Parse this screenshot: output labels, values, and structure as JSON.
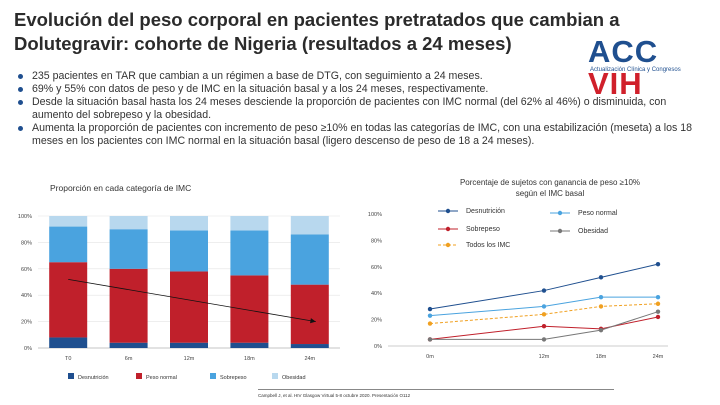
{
  "title": "Evolución del peso corporal en pacientes pretratados que cambian a Dolutegravir: cohorte de Nigeria (resultados a 24 meses)",
  "logo": {
    "part1": "ACC",
    "part2": "VIH",
    "tagline": "Actualización Clínica y Congresos",
    "colors": {
      "blue": "#1f4f8f",
      "red": "#d0202b"
    }
  },
  "bullets": [
    "235 pacientes en TAR que cambian a un régimen a base de DTG, con seguimiento a 24 meses.",
    "69% y 55% con datos de peso y de IMC en la situación basal y a los 24 meses, respectivamente.",
    "Desde la situación basal hasta los 24 meses desciende la proporción de pacientes con IMC normal (del 62% al 46%) o disminuida, con aumento del sobrepeso y la obesidad.",
    "Aumenta la proporción de pacientes con incremento de peso ≥10% en todas las categorías de IMC, con una estabilización (meseta) a los 18 meses en los pacientes con IMC normal en la situación basal (ligero descenso de peso de 18 a 24 meses)."
  ],
  "chart_data": [
    {
      "type": "bar",
      "stacked": true,
      "title": "Proporción en cada categoría de IMC",
      "categories": [
        "T0",
        "6m",
        "12m",
        "18m",
        "24m"
      ],
      "ylim": [
        0,
        100
      ],
      "yticks": [
        "0%",
        "20%",
        "40%",
        "60%",
        "80%",
        "100%"
      ],
      "ytick_values": [
        0,
        20,
        40,
        60,
        80,
        100
      ],
      "series": [
        {
          "name": "Desnutrición",
          "color": "#1f4f8f",
          "values": [
            8,
            4,
            4,
            4,
            3
          ]
        },
        {
          "name": "Peso normal",
          "color": "#c0202b",
          "values": [
            57,
            56,
            54,
            51,
            45
          ]
        },
        {
          "name": "Sobrepeso",
          "color": "#4aa3df",
          "values": [
            27,
            30,
            31,
            34,
            38
          ]
        },
        {
          "name": "Obesidad",
          "color": "#b8d8ee",
          "values": [
            8,
            10,
            11,
            11,
            14
          ]
        }
      ],
      "trend_arrow": {
        "from": {
          "x": "T0",
          "y": 52
        },
        "to": {
          "x": "24m",
          "y": 20
        }
      }
    },
    {
      "type": "line",
      "title": "Porcentaje de sujetos con ganancia de peso ≥10% según el IMC basal",
      "x": [
        "0m",
        "12m",
        "18m",
        "24m"
      ],
      "x_positions": [
        0,
        12,
        18,
        24
      ],
      "ylim": [
        0,
        100
      ],
      "yticks": [
        "0%",
        "20%",
        "40%",
        "60%",
        "80%",
        "100%"
      ],
      "ytick_values": [
        0,
        20,
        40,
        60,
        80,
        100
      ],
      "series": [
        {
          "name": "Desnutrición",
          "color": "#1f4f8f",
          "dash": false,
          "values": [
            28,
            42,
            52,
            62
          ]
        },
        {
          "name": "Peso normal",
          "color": "#4aa3df",
          "dash": false,
          "values": [
            23,
            30,
            37,
            37
          ]
        },
        {
          "name": "Sobrepeso",
          "color": "#c0202b",
          "dash": false,
          "values": [
            5,
            15,
            13,
            22
          ]
        },
        {
          "name": "Obesidad",
          "color": "#777777",
          "dash": false,
          "values": [
            5,
            5,
            12,
            26
          ]
        },
        {
          "name": "Todos los IMC",
          "color": "#f0a020",
          "dash": true,
          "values": [
            17,
            24,
            30,
            32
          ]
        }
      ]
    }
  ],
  "footnote": "Campbell J, et al. HIV Glasgow Virtual 5-8 octubre 2020. Presentación O112"
}
